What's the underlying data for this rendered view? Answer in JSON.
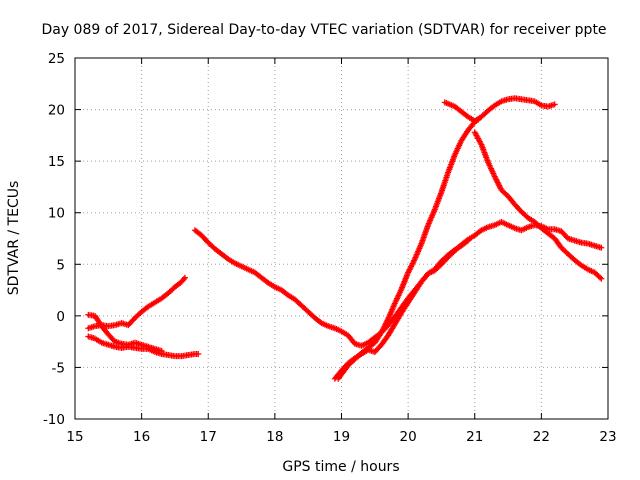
{
  "chart_data": {
    "type": "scatter",
    "title": "Day 089 of 2017, Sidereal Day-to-day VTEC variation (SDTVAR) for receiver ppte",
    "xlabel": "GPS time / hours",
    "ylabel": "SDTVAR / TECUs",
    "xlim": [
      15,
      23
    ],
    "ylim": [
      -10,
      25
    ],
    "xticks": [
      15,
      16,
      17,
      18,
      19,
      20,
      21,
      22,
      23
    ],
    "yticks": [
      -10,
      -5,
      0,
      5,
      10,
      15,
      20,
      25
    ],
    "grid": true,
    "marker": "plus",
    "color": "#ff0000",
    "series": [
      {
        "x": [
          15.2,
          15.3,
          15.4,
          15.5,
          15.6,
          15.7,
          15.8,
          15.9,
          16.0,
          16.1,
          16.2,
          16.3,
          16.4,
          16.5,
          16.6,
          16.65
        ],
        "y": [
          -1.2,
          -1.0,
          -0.9,
          -1.0,
          -0.9,
          -0.7,
          -0.9,
          -0.2,
          0.4,
          0.9,
          1.3,
          1.7,
          2.2,
          2.8,
          3.3,
          3.7
        ]
      },
      {
        "x": [
          15.2,
          15.3,
          15.4,
          15.5,
          15.6,
          15.7,
          15.8,
          15.9,
          16.0,
          16.1,
          16.2,
          16.3,
          16.4,
          16.5,
          16.6,
          16.7,
          16.8,
          16.85
        ],
        "y": [
          -2.0,
          -2.2,
          -2.6,
          -2.8,
          -3.0,
          -3.1,
          -3.0,
          -3.1,
          -3.2,
          -3.2,
          -3.5,
          -3.7,
          -3.8,
          -3.9,
          -3.9,
          -3.8,
          -3.7,
          -3.7
        ]
      },
      {
        "x": [
          15.2,
          15.3,
          15.4,
          15.5,
          15.6,
          15.7,
          15.8,
          15.9,
          16.0,
          16.1,
          16.2,
          16.3
        ],
        "y": [
          0.1,
          0.0,
          -1.0,
          -1.8,
          -2.5,
          -2.7,
          -2.8,
          -2.6,
          -2.8,
          -3.0,
          -3.2,
          -3.4
        ]
      },
      {
        "x": [
          16.8,
          16.9,
          17.0,
          17.1,
          17.2,
          17.3,
          17.4,
          17.5,
          17.6,
          17.7,
          17.8,
          17.9,
          18.0,
          18.1,
          18.2,
          18.3,
          18.4,
          18.5,
          18.6,
          18.7,
          18.8,
          18.9,
          19.0,
          19.1,
          19.2,
          19.3,
          19.4,
          19.5,
          19.6,
          19.7,
          19.8,
          19.9,
          20.0,
          20.1,
          20.2,
          20.3,
          20.4,
          20.5,
          20.6,
          20.7,
          20.8,
          20.9,
          21.0,
          21.1,
          21.2,
          21.3,
          21.4,
          21.5,
          21.6,
          21.7,
          21.8,
          21.9,
          22.0,
          22.1,
          22.2,
          22.3,
          22.4,
          22.5,
          22.6,
          22.7,
          22.8,
          22.9
        ],
        "y": [
          8.3,
          7.8,
          7.1,
          6.5,
          6.0,
          5.5,
          5.1,
          4.8,
          4.5,
          4.2,
          3.7,
          3.2,
          2.8,
          2.5,
          2.0,
          1.6,
          1.0,
          0.4,
          -0.2,
          -0.7,
          -1.0,
          -1.2,
          -1.5,
          -1.9,
          -2.7,
          -2.9,
          -2.6,
          -2.1,
          -1.6,
          -0.9,
          -0.1,
          0.8,
          1.7,
          2.5,
          3.3,
          4.1,
          4.4,
          5.0,
          5.7,
          6.3,
          6.9,
          7.4,
          7.8,
          8.3,
          8.6,
          8.8,
          9.1,
          8.8,
          8.5,
          8.3,
          8.6,
          8.8,
          8.7,
          8.4,
          8.4,
          8.2,
          7.5,
          7.3,
          7.1,
          7.0,
          6.8,
          6.6
        ]
      },
      {
        "x": [
          18.9,
          19.0,
          19.1,
          19.2,
          19.3,
          19.4,
          19.5,
          19.6,
          19.7,
          19.8,
          19.9,
          20.0,
          20.1,
          20.2,
          20.3,
          20.4,
          20.5,
          20.6,
          20.7,
          20.8,
          20.9,
          21.0,
          21.1,
          21.2,
          21.3,
          21.4,
          21.5,
          21.6,
          21.7,
          21.8,
          21.9,
          22.0,
          22.1,
          22.2,
          22.3,
          22.4,
          22.5,
          22.6,
          22.7,
          22.8,
          22.9
        ],
        "y": [
          -6.1,
          -5.3,
          -4.6,
          -4.1,
          -3.7,
          -3.3,
          -3.5,
          -2.8,
          -1.9,
          -0.8,
          0.3,
          1.3,
          2.3,
          3.3,
          4.1,
          4.5,
          5.3,
          5.9,
          6.4,
          6.8,
          7.3,
          17.8,
          16.6,
          14.9,
          13.5,
          12.2,
          11.6,
          10.8,
          10.1,
          9.5,
          9.1,
          8.5,
          8.0,
          7.5,
          6.6,
          6.0,
          5.4,
          4.9,
          4.5,
          4.2,
          3.6
        ]
      },
      {
        "x": [
          18.95,
          19.1,
          19.3,
          19.5,
          19.6,
          19.7,
          19.8,
          19.9,
          20.0,
          20.1,
          20.2,
          20.3,
          20.4,
          20.5,
          20.6,
          20.7,
          20.8,
          20.9,
          21.0,
          21.05
        ],
        "y": [
          -6.1,
          -4.8,
          -3.6,
          -2.6,
          -1.6,
          -0.3,
          1.2,
          2.6,
          4.2,
          5.5,
          7.0,
          8.8,
          10.3,
          12.0,
          13.9,
          15.6,
          17.0,
          18.0,
          18.8,
          19.0
        ]
      },
      {
        "x": [
          20.55,
          20.7,
          20.8,
          20.9,
          21.0,
          21.1,
          21.2,
          21.3,
          21.4,
          21.5,
          21.6,
          21.7,
          21.8,
          21.9,
          22.0,
          22.1,
          22.2
        ],
        "y": [
          20.7,
          20.3,
          19.8,
          19.3,
          18.9,
          19.3,
          19.9,
          20.4,
          20.8,
          21.0,
          21.1,
          21.0,
          20.9,
          20.8,
          20.4,
          20.3,
          20.5
        ]
      }
    ]
  }
}
